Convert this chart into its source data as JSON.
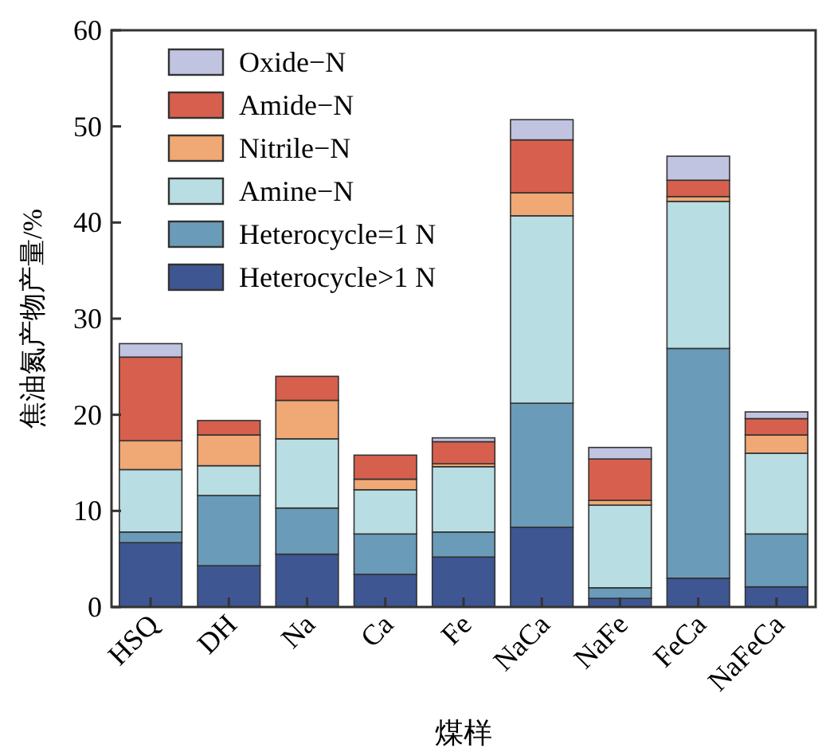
{
  "chart_data": {
    "type": "bar",
    "stacked": true,
    "xlabel": "煤样",
    "ylabel": "焦油氮产物产量/%",
    "categories": [
      "HSQ",
      "DH",
      "Na",
      "Ca",
      "Fe",
      "NaCa",
      "NaFe",
      "FeCa",
      "NaFeCa"
    ],
    "series": [
      {
        "name": "Heterocycle>1 N",
        "color": "#3e5692",
        "values": [
          6.7,
          4.3,
          5.5,
          3.4,
          5.2,
          8.3,
          0.9,
          3.0,
          2.1
        ]
      },
      {
        "name": "Heterocycle=1 N",
        "color": "#6a9bb8",
        "values": [
          1.1,
          7.3,
          4.8,
          4.2,
          2.6,
          12.9,
          1.1,
          23.9,
          5.5
        ]
      },
      {
        "name": "Amine−N",
        "color": "#b8dde3",
        "values": [
          6.5,
          3.1,
          7.2,
          4.6,
          6.8,
          19.5,
          8.6,
          15.3,
          8.4
        ]
      },
      {
        "name": "Nitrile−N",
        "color": "#f0a875",
        "values": [
          3.0,
          3.2,
          4.0,
          1.1,
          0.3,
          2.4,
          0.5,
          0.5,
          1.9
        ]
      },
      {
        "name": "Amide−N",
        "color": "#d6604d",
        "values": [
          8.7,
          1.5,
          2.5,
          2.5,
          2.3,
          5.5,
          4.3,
          1.7,
          1.7
        ]
      },
      {
        "name": "Oxide−N",
        "color": "#c0c4e0",
        "values": [
          1.4,
          0,
          0,
          0,
          0.4,
          2.1,
          1.2,
          2.5,
          0.7
        ]
      }
    ],
    "ylim": [
      0,
      60
    ],
    "yticks": [
      0,
      10,
      20,
      30,
      40,
      50,
      60
    ],
    "grid": false,
    "legend": "top left"
  }
}
